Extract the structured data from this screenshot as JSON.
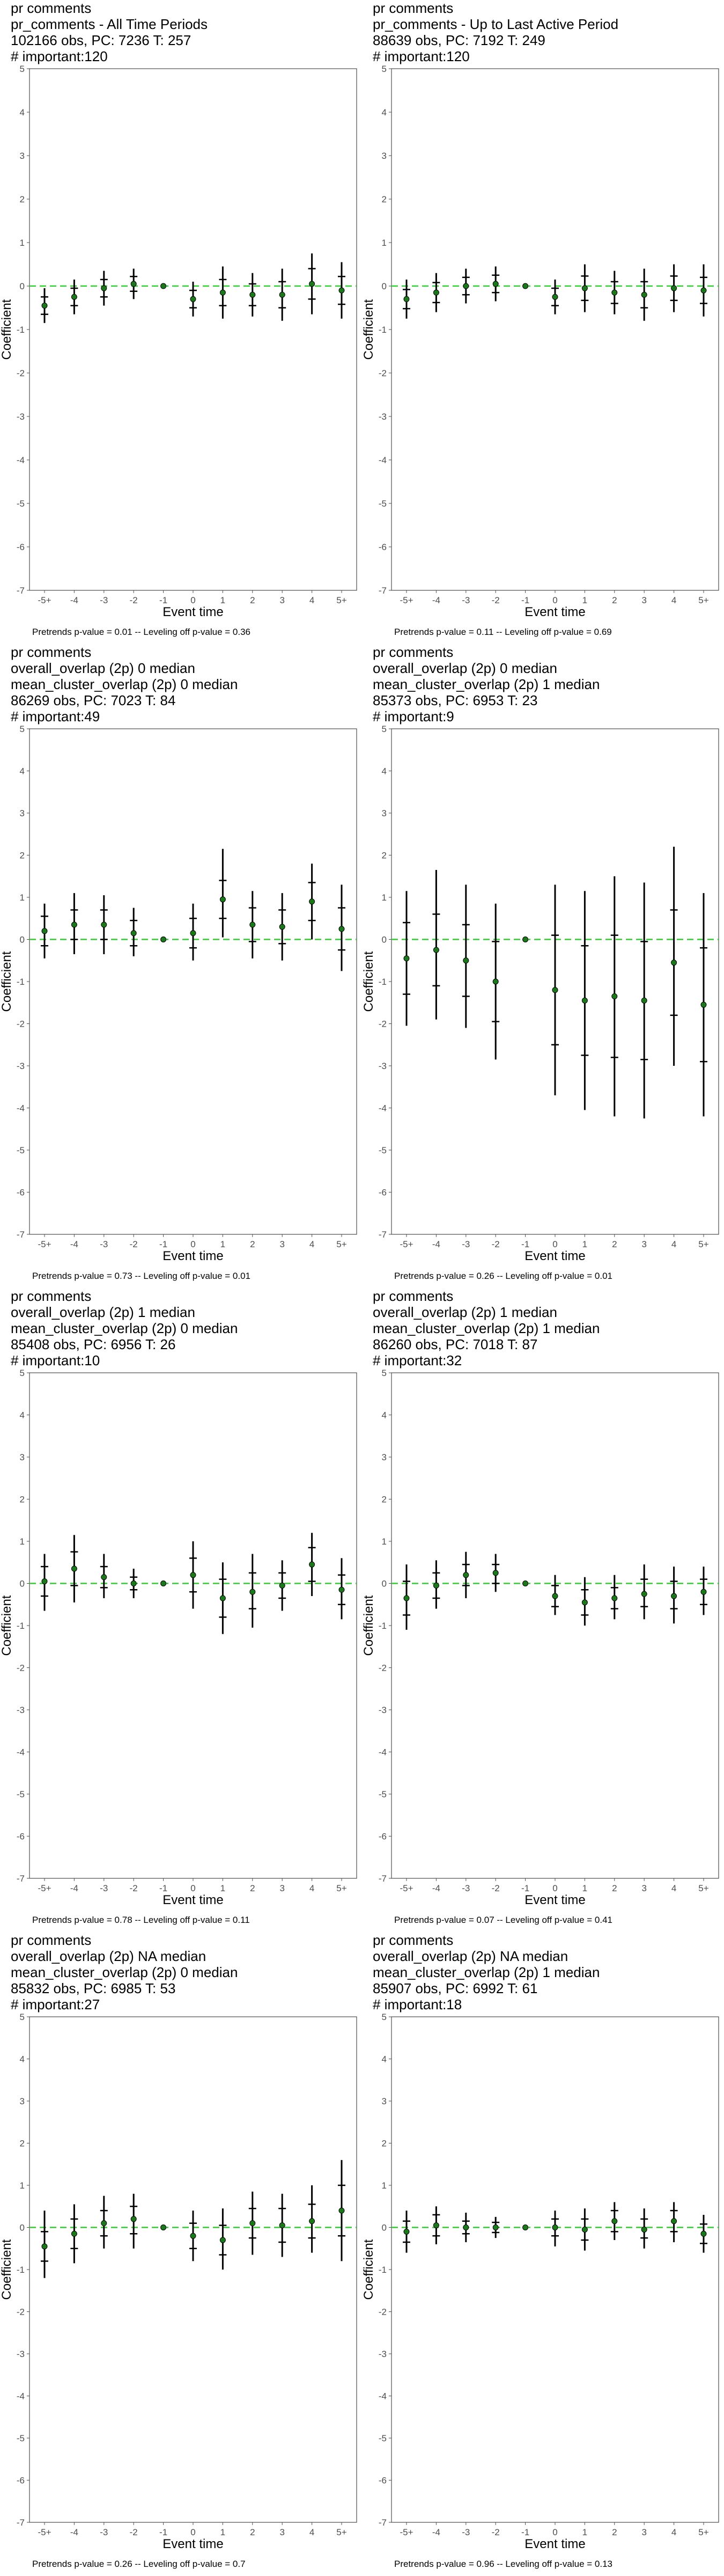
{
  "colors": {
    "point": "#1a7a1a",
    "errorbar": "#000000",
    "zero_line": "#33cc33",
    "frame": "#4d4d4d",
    "background": "#ffffff"
  },
  "chart_data": [
    {
      "type": "scatter",
      "title_lines": [
        "pr comments",
        "pr_comments - All Time Periods",
        "102166 obs, PC: 7236 T: 257",
        "# important:120"
      ],
      "caption": "Pretrends p-value = 0.01 -- Leveling off p-value = 0.36",
      "xlabel": "Event time",
      "ylabel": "Coefficient",
      "categories": [
        "-5+",
        "-4",
        "-3",
        "-2",
        "-1",
        "0",
        "1",
        "2",
        "3",
        "4",
        "5+"
      ],
      "ylim": [
        -7,
        5
      ],
      "yticks": [
        -7,
        -6,
        -5,
        -4,
        -3,
        -2,
        -1,
        0,
        1,
        2,
        3,
        4,
        5
      ],
      "estimate": [
        -0.45,
        -0.25,
        -0.05,
        0.05,
        0,
        -0.3,
        -0.15,
        -0.2,
        -0.2,
        0.05,
        -0.1
      ],
      "ci_outer_low": [
        -0.85,
        -0.65,
        -0.45,
        -0.3,
        0,
        -0.7,
        -0.75,
        -0.7,
        -0.8,
        -0.65,
        -0.75
      ],
      "ci_outer_high": [
        -0.05,
        0.15,
        0.35,
        0.4,
        0,
        0.1,
        0.45,
        0.3,
        0.4,
        0.75,
        0.55
      ],
      "ci_inner_low": [
        -0.65,
        -0.45,
        -0.25,
        -0.12,
        0,
        -0.5,
        -0.45,
        -0.45,
        -0.5,
        -0.3,
        -0.42
      ],
      "ci_inner_high": [
        -0.25,
        -0.05,
        0.15,
        0.22,
        0,
        -0.1,
        0.15,
        0.05,
        0.1,
        0.4,
        0.22
      ]
    },
    {
      "type": "scatter",
      "title_lines": [
        "pr comments",
        "pr_comments - Up to Last Active Period",
        "88639 obs, PC: 7192 T: 249",
        "# important:120"
      ],
      "caption": "Pretrends p-value = 0.11 -- Leveling off p-value = 0.69",
      "xlabel": "Event time",
      "ylabel": "Coefficient",
      "categories": [
        "-5+",
        "-4",
        "-3",
        "-2",
        "-1",
        "0",
        "1",
        "2",
        "3",
        "4",
        "5+"
      ],
      "ylim": [
        -7,
        5
      ],
      "yticks": [
        -7,
        -6,
        -5,
        -4,
        -3,
        -2,
        -1,
        0,
        1,
        2,
        3,
        4,
        5
      ],
      "estimate": [
        -0.3,
        -0.15,
        0.0,
        0.05,
        0,
        -0.25,
        -0.05,
        -0.15,
        -0.2,
        -0.05,
        -0.1
      ],
      "ci_outer_low": [
        -0.75,
        -0.6,
        -0.4,
        -0.35,
        0,
        -0.65,
        -0.6,
        -0.65,
        -0.8,
        -0.6,
        -0.7
      ],
      "ci_outer_high": [
        0.15,
        0.3,
        0.4,
        0.45,
        0,
        0.15,
        0.5,
        0.35,
        0.4,
        0.5,
        0.5
      ],
      "ci_inner_low": [
        -0.52,
        -0.38,
        -0.2,
        -0.15,
        0,
        -0.45,
        -0.33,
        -0.4,
        -0.5,
        -0.33,
        -0.4
      ],
      "ci_inner_high": [
        -0.08,
        0.08,
        0.2,
        0.25,
        0,
        -0.05,
        0.23,
        0.1,
        0.1,
        0.23,
        0.2
      ]
    },
    {
      "type": "scatter",
      "title_lines": [
        "pr comments",
        "overall_overlap (2p) 0 median",
        "mean_cluster_overlap (2p) 0 median",
        "86269 obs, PC: 7023 T: 84",
        "# important:49"
      ],
      "caption": "Pretrends p-value = 0.73 -- Leveling off p-value = 0.01",
      "xlabel": "Event time",
      "ylabel": "Coefficient",
      "categories": [
        "-5+",
        "-4",
        "-3",
        "-2",
        "-1",
        "0",
        "1",
        "2",
        "3",
        "4",
        "5+"
      ],
      "ylim": [
        -7,
        5
      ],
      "yticks": [
        -7,
        -6,
        -5,
        -4,
        -3,
        -2,
        -1,
        0,
        1,
        2,
        3,
        4,
        5
      ],
      "estimate": [
        0.2,
        0.35,
        0.35,
        0.15,
        0,
        0.15,
        0.95,
        0.35,
        0.3,
        0.9,
        0.25
      ],
      "ci_outer_low": [
        -0.45,
        -0.35,
        -0.35,
        -0.4,
        0,
        -0.5,
        0.05,
        -0.45,
        -0.5,
        0.0,
        -0.75
      ],
      "ci_outer_high": [
        0.85,
        1.1,
        1.05,
        0.75,
        0,
        0.85,
        2.15,
        1.15,
        1.1,
        1.8,
        1.3
      ],
      "ci_inner_low": [
        -0.15,
        0.0,
        0.0,
        -0.15,
        0,
        -0.2,
        0.5,
        -0.05,
        -0.1,
        0.45,
        -0.25
      ],
      "ci_inner_high": [
        0.55,
        0.7,
        0.7,
        0.45,
        0,
        0.5,
        1.4,
        0.75,
        0.7,
        1.35,
        0.75
      ]
    },
    {
      "type": "scatter",
      "title_lines": [
        "pr comments",
        "overall_overlap (2p) 0 median",
        "mean_cluster_overlap (2p) 1 median",
        "85373 obs, PC: 6953 T: 23",
        "# important:9"
      ],
      "caption": "Pretrends p-value = 0.26 -- Leveling off p-value = 0.01",
      "xlabel": "Event time",
      "ylabel": "Coefficient",
      "categories": [
        "-5+",
        "-4",
        "-3",
        "-2",
        "-1",
        "0",
        "1",
        "2",
        "3",
        "4",
        "5+"
      ],
      "ylim": [
        -7,
        5
      ],
      "yticks": [
        -7,
        -6,
        -5,
        -4,
        -3,
        -2,
        -1,
        0,
        1,
        2,
        3,
        4,
        5
      ],
      "estimate": [
        -0.45,
        -0.25,
        -0.5,
        -1.0,
        0,
        -1.2,
        -1.45,
        -1.35,
        -1.45,
        -0.55,
        -1.55
      ],
      "ci_outer_low": [
        -2.05,
        -1.9,
        -2.1,
        -2.85,
        0,
        -3.7,
        -4.05,
        -4.2,
        -4.25,
        -3.0,
        -4.2
      ],
      "ci_outer_high": [
        1.15,
        1.65,
        1.3,
        0.85,
        0,
        1.3,
        1.15,
        1.5,
        1.35,
        2.2,
        1.1
      ],
      "ci_inner_low": [
        -1.3,
        -1.1,
        -1.35,
        -1.95,
        0,
        -2.5,
        -2.75,
        -2.8,
        -2.85,
        -1.8,
        -2.9
      ],
      "ci_inner_high": [
        0.4,
        0.6,
        0.35,
        -0.05,
        0,
        0.1,
        -0.15,
        0.1,
        -0.05,
        0.7,
        -0.2
      ]
    },
    {
      "type": "scatter",
      "title_lines": [
        "pr comments",
        "overall_overlap (2p) 1 median",
        "mean_cluster_overlap (2p) 0 median",
        "85408 obs, PC: 6956 T: 26",
        "# important:10"
      ],
      "caption": "Pretrends p-value = 0.78 -- Leveling off p-value = 0.11",
      "xlabel": "Event time",
      "ylabel": "Coefficient",
      "categories": [
        "-5+",
        "-4",
        "-3",
        "-2",
        "-1",
        "0",
        "1",
        "2",
        "3",
        "4",
        "5+"
      ],
      "ylim": [
        -7,
        5
      ],
      "yticks": [
        -7,
        -6,
        -5,
        -4,
        -3,
        -2,
        -1,
        0,
        1,
        2,
        3,
        4,
        5
      ],
      "estimate": [
        0.05,
        0.35,
        0.15,
        0.0,
        0,
        0.2,
        -0.35,
        -0.2,
        -0.05,
        0.45,
        -0.15
      ],
      "ci_outer_low": [
        -0.65,
        -0.45,
        -0.35,
        -0.35,
        0,
        -0.6,
        -1.2,
        -1.05,
        -0.65,
        -0.3,
        -0.85
      ],
      "ci_outer_high": [
        0.7,
        1.15,
        0.7,
        0.35,
        0,
        1.0,
        0.5,
        0.7,
        0.55,
        1.2,
        0.6
      ],
      "ci_inner_low": [
        -0.3,
        -0.05,
        -0.1,
        -0.15,
        0,
        -0.2,
        -0.8,
        -0.6,
        -0.35,
        0.05,
        -0.5
      ],
      "ci_inner_high": [
        0.4,
        0.75,
        0.4,
        0.15,
        0,
        0.6,
        0.1,
        0.25,
        0.25,
        0.85,
        0.2
      ]
    },
    {
      "type": "scatter",
      "title_lines": [
        "pr comments",
        "overall_overlap (2p) 1 median",
        "mean_cluster_overlap (2p) 1 median",
        "86260 obs, PC: 7018 T: 87",
        "# important:32"
      ],
      "caption": "Pretrends p-value = 0.07 -- Leveling off p-value = 0.41",
      "xlabel": "Event time",
      "ylabel": "Coefficient",
      "categories": [
        "-5+",
        "-4",
        "-3",
        "-2",
        "-1",
        "0",
        "1",
        "2",
        "3",
        "4",
        "5+"
      ],
      "ylim": [
        -7,
        5
      ],
      "yticks": [
        -7,
        -6,
        -5,
        -4,
        -3,
        -2,
        -1,
        0,
        1,
        2,
        3,
        4,
        5
      ],
      "estimate": [
        -0.35,
        -0.05,
        0.2,
        0.25,
        0,
        -0.3,
        -0.45,
        -0.35,
        -0.25,
        -0.3,
        -0.2
      ],
      "ci_outer_low": [
        -1.1,
        -0.6,
        -0.35,
        -0.2,
        0,
        -0.75,
        -1.0,
        -0.85,
        -0.85,
        -0.95,
        -0.75
      ],
      "ci_outer_high": [
        0.45,
        0.55,
        0.75,
        0.7,
        0,
        0.2,
        0.15,
        0.2,
        0.45,
        0.4,
        0.4
      ],
      "ci_inner_low": [
        -0.75,
        -0.35,
        -0.05,
        0.0,
        0,
        -0.55,
        -0.75,
        -0.6,
        -0.55,
        -0.6,
        -0.5
      ],
      "ci_inner_high": [
        0.05,
        0.25,
        0.45,
        0.45,
        0,
        -0.05,
        -0.15,
        -0.1,
        0.1,
        0.05,
        0.1
      ]
    },
    {
      "type": "scatter",
      "title_lines": [
        "pr comments",
        "overall_overlap (2p) NA median",
        "mean_cluster_overlap (2p) 0 median",
        "85832 obs, PC: 6985 T: 53",
        "# important:27"
      ],
      "caption": "Pretrends p-value = 0.26 -- Leveling off p-value = 0.7",
      "xlabel": "Event time",
      "ylabel": "Coefficient",
      "categories": [
        "-5+",
        "-4",
        "-3",
        "-2",
        "-1",
        "0",
        "1",
        "2",
        "3",
        "4",
        "5+"
      ],
      "ylim": [
        -7,
        5
      ],
      "yticks": [
        -7,
        -6,
        -5,
        -4,
        -3,
        -2,
        -1,
        0,
        1,
        2,
        3,
        4,
        5
      ],
      "estimate": [
        -0.45,
        -0.15,
        0.1,
        0.2,
        0,
        -0.2,
        -0.3,
        0.1,
        0.05,
        0.15,
        0.4
      ],
      "ci_outer_low": [
        -1.2,
        -0.85,
        -0.5,
        -0.5,
        0,
        -0.8,
        -1.0,
        -0.65,
        -0.7,
        -0.6,
        -0.8
      ],
      "ci_outer_high": [
        0.4,
        0.55,
        0.75,
        0.8,
        0,
        0.4,
        0.45,
        0.85,
        0.8,
        1.0,
        1.6
      ],
      "ci_inner_low": [
        -0.8,
        -0.5,
        -0.2,
        -0.15,
        0,
        -0.5,
        -0.65,
        -0.25,
        -0.35,
        -0.25,
        -0.2
      ],
      "ci_inner_high": [
        -0.1,
        0.2,
        0.4,
        0.5,
        0,
        0.1,
        0.05,
        0.45,
        0.45,
        0.55,
        1.0
      ]
    },
    {
      "type": "scatter",
      "title_lines": [
        "pr comments",
        "overall_overlap (2p) NA median",
        "mean_cluster_overlap (2p) 1 median",
        "85907 obs, PC: 6992 T: 61",
        "# important:18"
      ],
      "caption": "Pretrends p-value = 0.96 -- Leveling off p-value = 0.13",
      "xlabel": "Event time",
      "ylabel": "Coefficient",
      "categories": [
        "-5+",
        "-4",
        "-3",
        "-2",
        "-1",
        "0",
        "1",
        "2",
        "3",
        "4",
        "5+"
      ],
      "ylim": [
        -7,
        5
      ],
      "yticks": [
        -7,
        -6,
        -5,
        -4,
        -3,
        -2,
        -1,
        0,
        1,
        2,
        3,
        4,
        5
      ],
      "estimate": [
        -0.1,
        0.05,
        0.0,
        0.0,
        0,
        0.0,
        -0.05,
        0.15,
        -0.05,
        0.15,
        -0.15
      ],
      "ci_outer_low": [
        -0.6,
        -0.4,
        -0.35,
        -0.25,
        0,
        -0.45,
        -0.55,
        -0.3,
        -0.5,
        -0.35,
        -0.6
      ],
      "ci_outer_high": [
        0.4,
        0.5,
        0.35,
        0.25,
        0,
        0.4,
        0.45,
        0.6,
        0.45,
        0.6,
        0.3
      ],
      "ci_inner_low": [
        -0.35,
        -0.2,
        -0.15,
        -0.12,
        0,
        -0.2,
        -0.3,
        -0.1,
        -0.25,
        -0.1,
        -0.38
      ],
      "ci_inner_high": [
        0.15,
        0.3,
        0.15,
        0.12,
        0,
        0.2,
        0.2,
        0.4,
        0.2,
        0.4,
        0.08
      ]
    }
  ]
}
